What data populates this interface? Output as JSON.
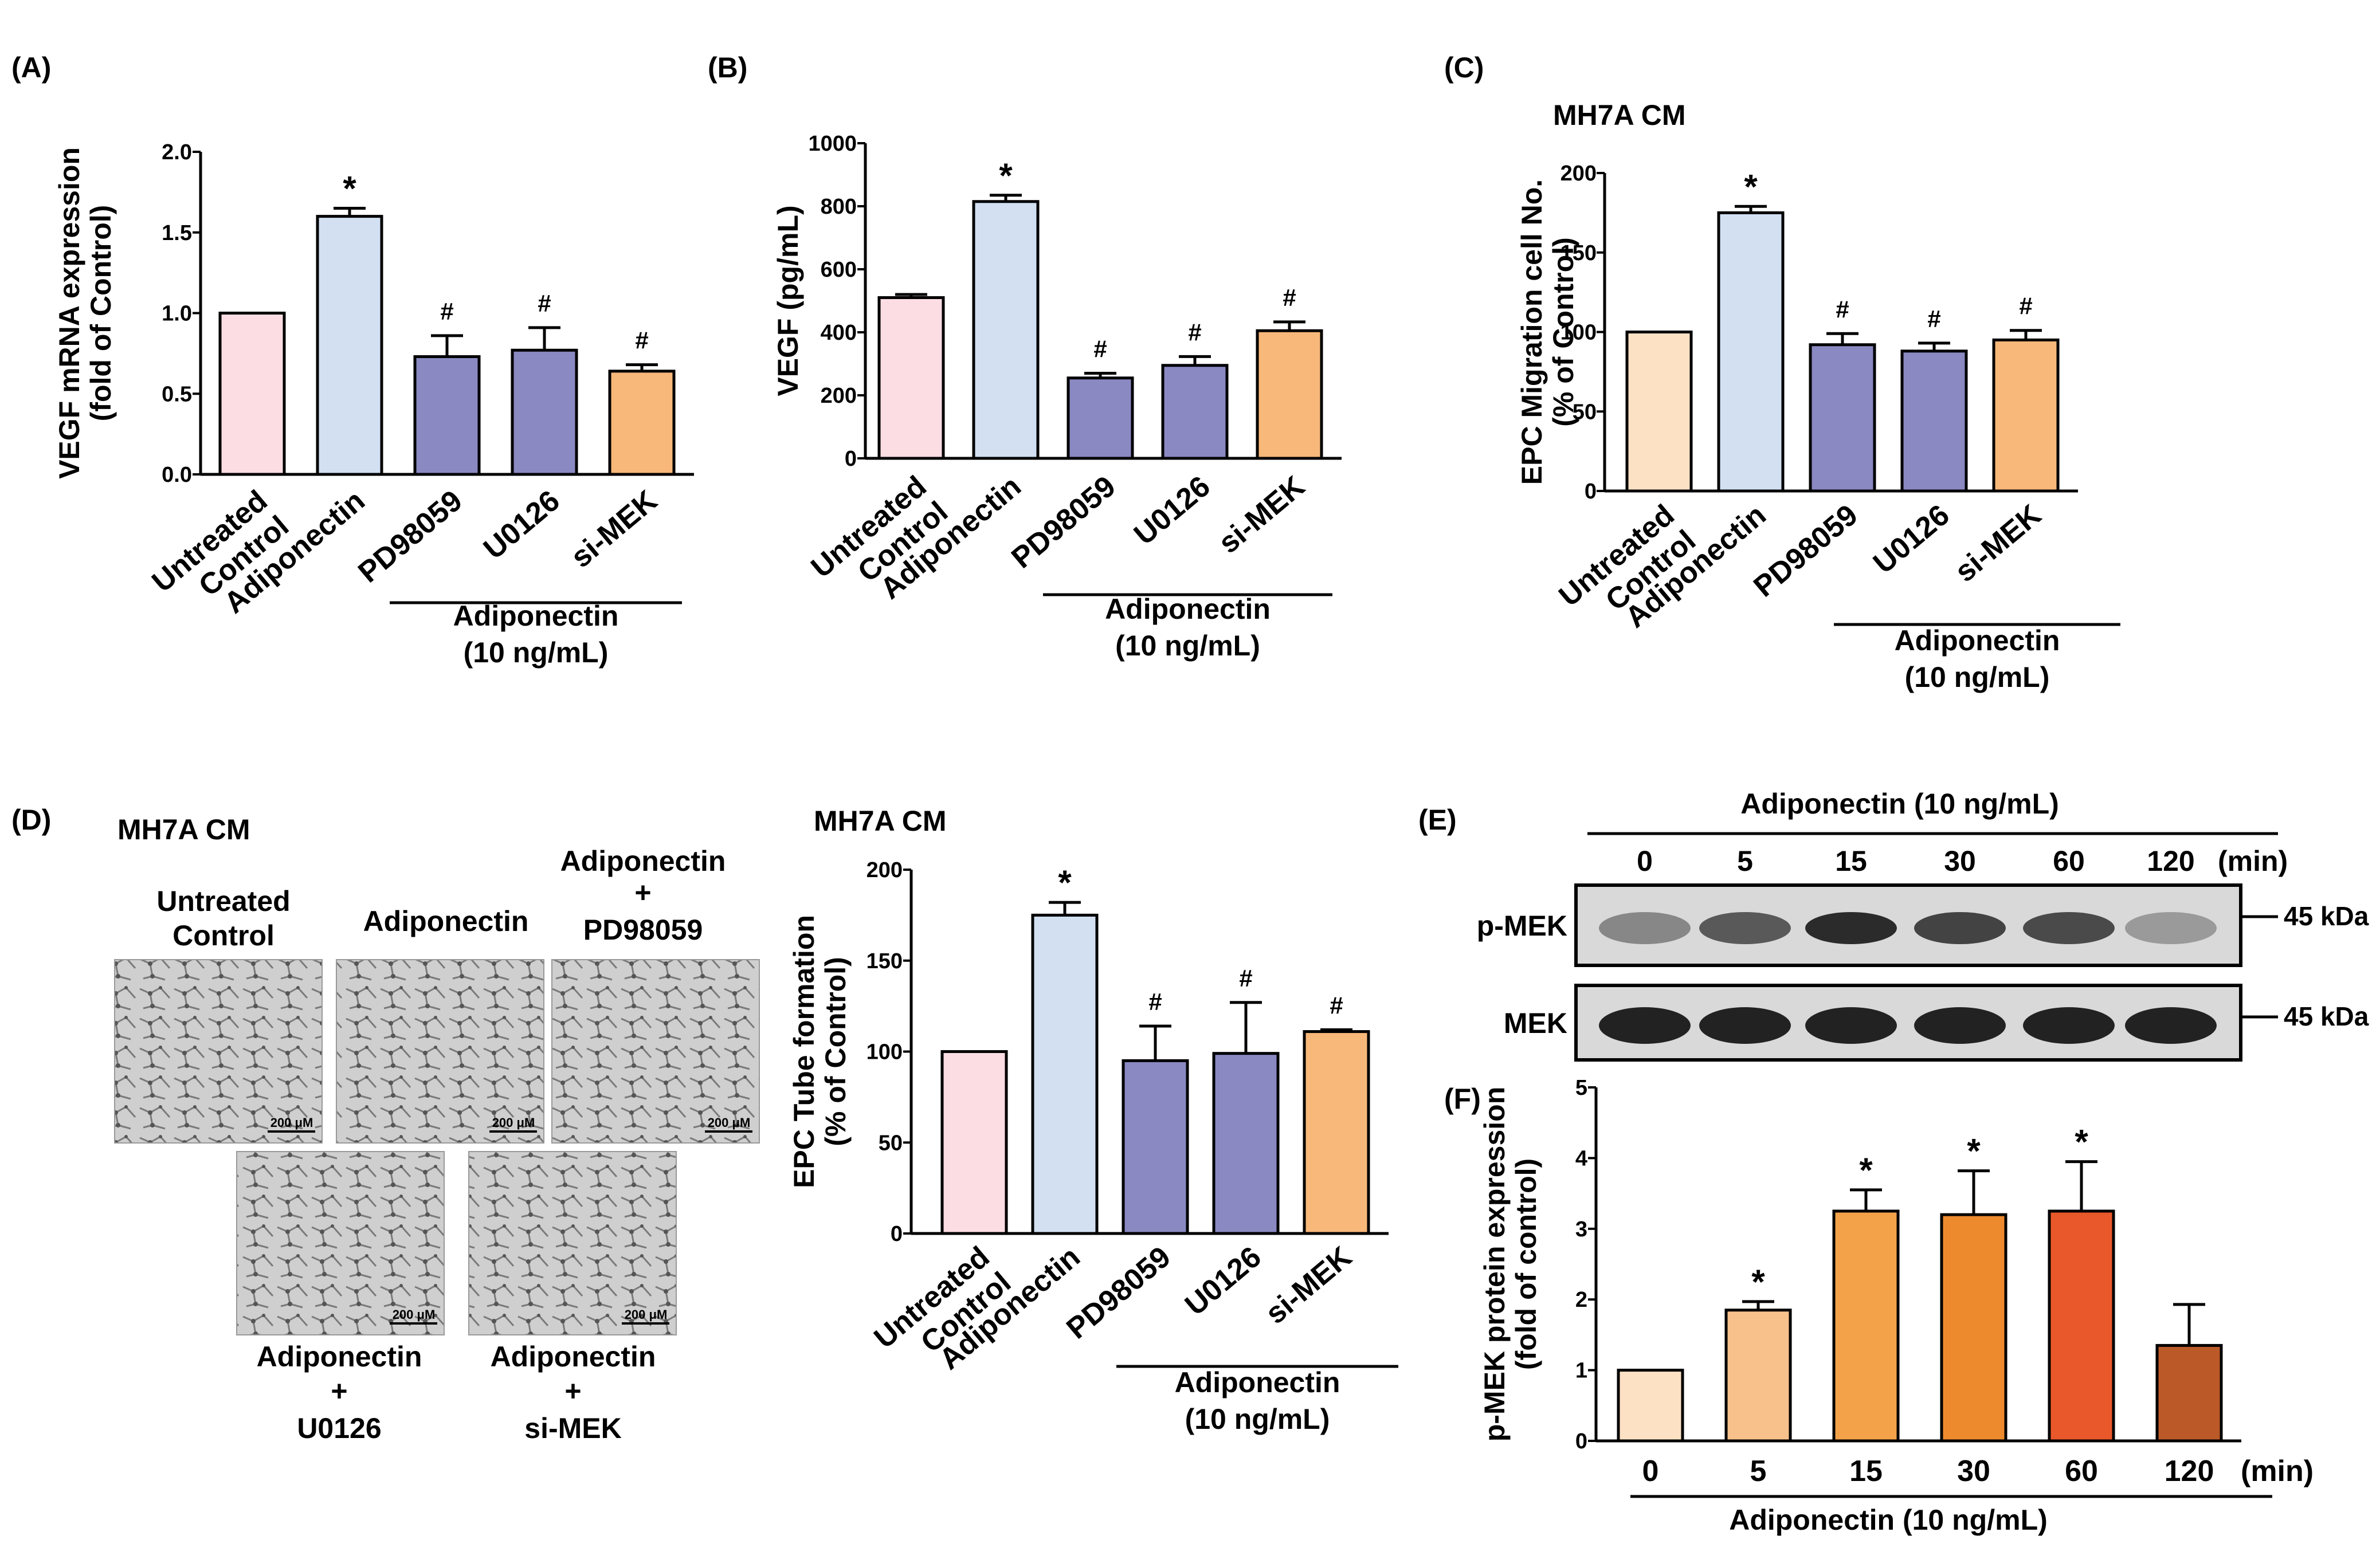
{
  "panels": {
    "a": {
      "label": "(A)"
    },
    "b": {
      "label": "(B)"
    },
    "c": {
      "label": "(C)"
    },
    "d": {
      "label": "(D)"
    },
    "e": {
      "label": "(E)"
    },
    "f": {
      "label": "(F)"
    }
  },
  "colors": {
    "control_pink": "#fcdde3",
    "adiponectin_blue": "#d2e0f2",
    "inhibitor_purple": "#8a89c2",
    "simek_orange": "#f8b87a",
    "control_peach": "#fde1c4"
  },
  "group": {
    "line1": "Adiponectin",
    "line2": "(10 ng/mL)"
  },
  "chart_data": [
    {
      "id": "A",
      "type": "bar",
      "title": "",
      "ylabel": [
        "VEGF mRNA expression",
        "(fold of Control)"
      ],
      "categories": [
        [
          "Untreated",
          "Control"
        ],
        [
          "Adiponectin"
        ],
        [
          "PD98059"
        ],
        [
          "U0126"
        ],
        [
          "si-MEK"
        ]
      ],
      "values": [
        1.0,
        1.6,
        0.73,
        0.77,
        0.64
      ],
      "errors": [
        0,
        0.05,
        0.13,
        0.14,
        0.04
      ],
      "colors": [
        "#fcdde3",
        "#d2e0f2",
        "#8a89c2",
        "#8a89c2",
        "#f8b87a"
      ],
      "marks": [
        "",
        "*",
        "#",
        "#",
        "#"
      ],
      "ylim": [
        0,
        2.0
      ],
      "yticks": [
        0.0,
        0.5,
        1.0,
        1.5,
        2.0
      ],
      "ytick_labels": [
        "0.0",
        "0.5",
        "1.0",
        "1.5",
        "2.0"
      ]
    },
    {
      "id": "B",
      "type": "bar",
      "title": "",
      "ylabel": [
        "VEGF (pg/mL)"
      ],
      "categories": [
        [
          "Untreated",
          "Control"
        ],
        [
          "Adiponectin"
        ],
        [
          "PD98059"
        ],
        [
          "U0126"
        ],
        [
          "si-MEK"
        ]
      ],
      "values": [
        510,
        815,
        255,
        295,
        405
      ],
      "errors": [
        10,
        20,
        15,
        28,
        28
      ],
      "colors": [
        "#fcdde3",
        "#d2e0f2",
        "#8a89c2",
        "#8a89c2",
        "#f8b87a"
      ],
      "marks": [
        "",
        "*",
        "#",
        "#",
        "#"
      ],
      "ylim": [
        0,
        1000
      ],
      "yticks": [
        0,
        200,
        400,
        600,
        800,
        1000
      ],
      "ytick_labels": [
        "0",
        "200",
        "400",
        "600",
        "800",
        "1000"
      ]
    },
    {
      "id": "C",
      "type": "bar",
      "title": "MH7A CM",
      "ylabel": [
        "EPC Migration cell No.",
        "(% of Control)"
      ],
      "categories": [
        [
          "Untreated",
          "Control"
        ],
        [
          "Adiponectin"
        ],
        [
          "PD98059"
        ],
        [
          "U0126"
        ],
        [
          "si-MEK"
        ]
      ],
      "values": [
        100,
        175,
        92,
        88,
        95
      ],
      "errors": [
        0,
        4,
        7,
        5,
        6
      ],
      "colors": [
        "#fde1c4",
        "#d2e0f2",
        "#8a89c2",
        "#8a89c2",
        "#f8b87a"
      ],
      "marks": [
        "",
        "*",
        "#",
        "#",
        "#"
      ],
      "ylim": [
        0,
        200
      ],
      "yticks": [
        0,
        50,
        100,
        150,
        200
      ],
      "ytick_labels": [
        "0",
        "50",
        "100",
        "150",
        "200"
      ]
    },
    {
      "id": "D",
      "type": "bar",
      "title": "MH7A CM",
      "ylabel": [
        "EPC Tube formation",
        "(% of Control)"
      ],
      "categories": [
        [
          "Untreated",
          "Control"
        ],
        [
          "Adiponectin"
        ],
        [
          "PD98059"
        ],
        [
          "U0126"
        ],
        [
          "si-MEK"
        ]
      ],
      "values": [
        100,
        175,
        95,
        99,
        111
      ],
      "errors": [
        0,
        7,
        19,
        28,
        1
      ],
      "colors": [
        "#fcdde3",
        "#d2e0f2",
        "#8a89c2",
        "#8a89c2",
        "#f8b87a"
      ],
      "marks": [
        "",
        "*",
        "#",
        "#",
        "#"
      ],
      "ylim": [
        0,
        200
      ],
      "yticks": [
        0,
        50,
        100,
        150,
        200
      ],
      "ytick_labels": [
        "0",
        "50",
        "100",
        "150",
        "200"
      ]
    },
    {
      "id": "F",
      "type": "bar",
      "title": "",
      "ylabel": [
        "p-MEK protein expression",
        "(fold of control)"
      ],
      "categories": [
        "0",
        "5",
        "15",
        "30",
        "60",
        "120"
      ],
      "unit": "(min)",
      "values": [
        1.0,
        1.85,
        3.25,
        3.2,
        3.25,
        1.35
      ],
      "errors": [
        0,
        0.12,
        0.3,
        0.62,
        0.7,
        0.58
      ],
      "colors": [
        "#fde1c4",
        "#f8c08a",
        "#f4a24a",
        "#ee8a2e",
        "#e9582a",
        "#bb5a28"
      ],
      "marks": [
        "",
        "*",
        "*",
        "*",
        "*",
        ""
      ],
      "ylim": [
        0,
        5
      ],
      "yticks": [
        0,
        1,
        2,
        3,
        4,
        5
      ],
      "ytick_labels": [
        "0",
        "1",
        "2",
        "3",
        "4",
        "5"
      ],
      "group": "Adiponectin (10 ng/mL)"
    }
  ],
  "panel_d_images": {
    "title": "MH7A CM",
    "scale_bar": "200 μM",
    "items": [
      {
        "label": [
          "Untreated",
          "Control"
        ]
      },
      {
        "label": [
          "Adiponectin"
        ]
      },
      {
        "label": [
          "Adiponectin",
          "+",
          "PD98059"
        ]
      },
      {
        "label": [
          "Adiponectin",
          "+",
          "U0126"
        ]
      },
      {
        "label": [
          "Adiponectin",
          "+",
          "si-MEK"
        ]
      }
    ]
  },
  "panel_e": {
    "header": "Adiponectin (10 ng/mL)",
    "timepoints": [
      "0",
      "5",
      "15",
      "30",
      "60",
      "120"
    ],
    "unit": "(min)",
    "rows": [
      {
        "label": "p-MEK",
        "kda": "45 kDa",
        "intensities": [
          0.35,
          0.6,
          0.85,
          0.72,
          0.68,
          0.25
        ]
      },
      {
        "label": "MEK",
        "kda": "45 kDa",
        "intensities": [
          0.9,
          0.9,
          0.9,
          0.9,
          0.9,
          0.9
        ]
      }
    ]
  }
}
